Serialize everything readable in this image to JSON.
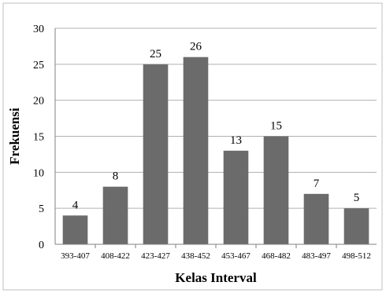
{
  "chart_data": {
    "type": "bar",
    "title": "",
    "xlabel": "Kelas Interval",
    "ylabel": "Frekuensi",
    "ylim": [
      0,
      30
    ],
    "yticks": [
      0,
      5,
      10,
      15,
      20,
      25,
      30
    ],
    "grid": true,
    "legend": "none",
    "bar_color": "#6b6b6b",
    "categories": [
      "393-407",
      "408-422",
      "423-427",
      "438-452",
      "453-467",
      "468-482",
      "483-497",
      "498-512"
    ],
    "values": [
      4,
      8,
      25,
      26,
      13,
      15,
      7,
      5
    ],
    "data_labels": [
      "4",
      "8",
      "25",
      "26",
      "13",
      "15",
      "7",
      "5"
    ]
  }
}
